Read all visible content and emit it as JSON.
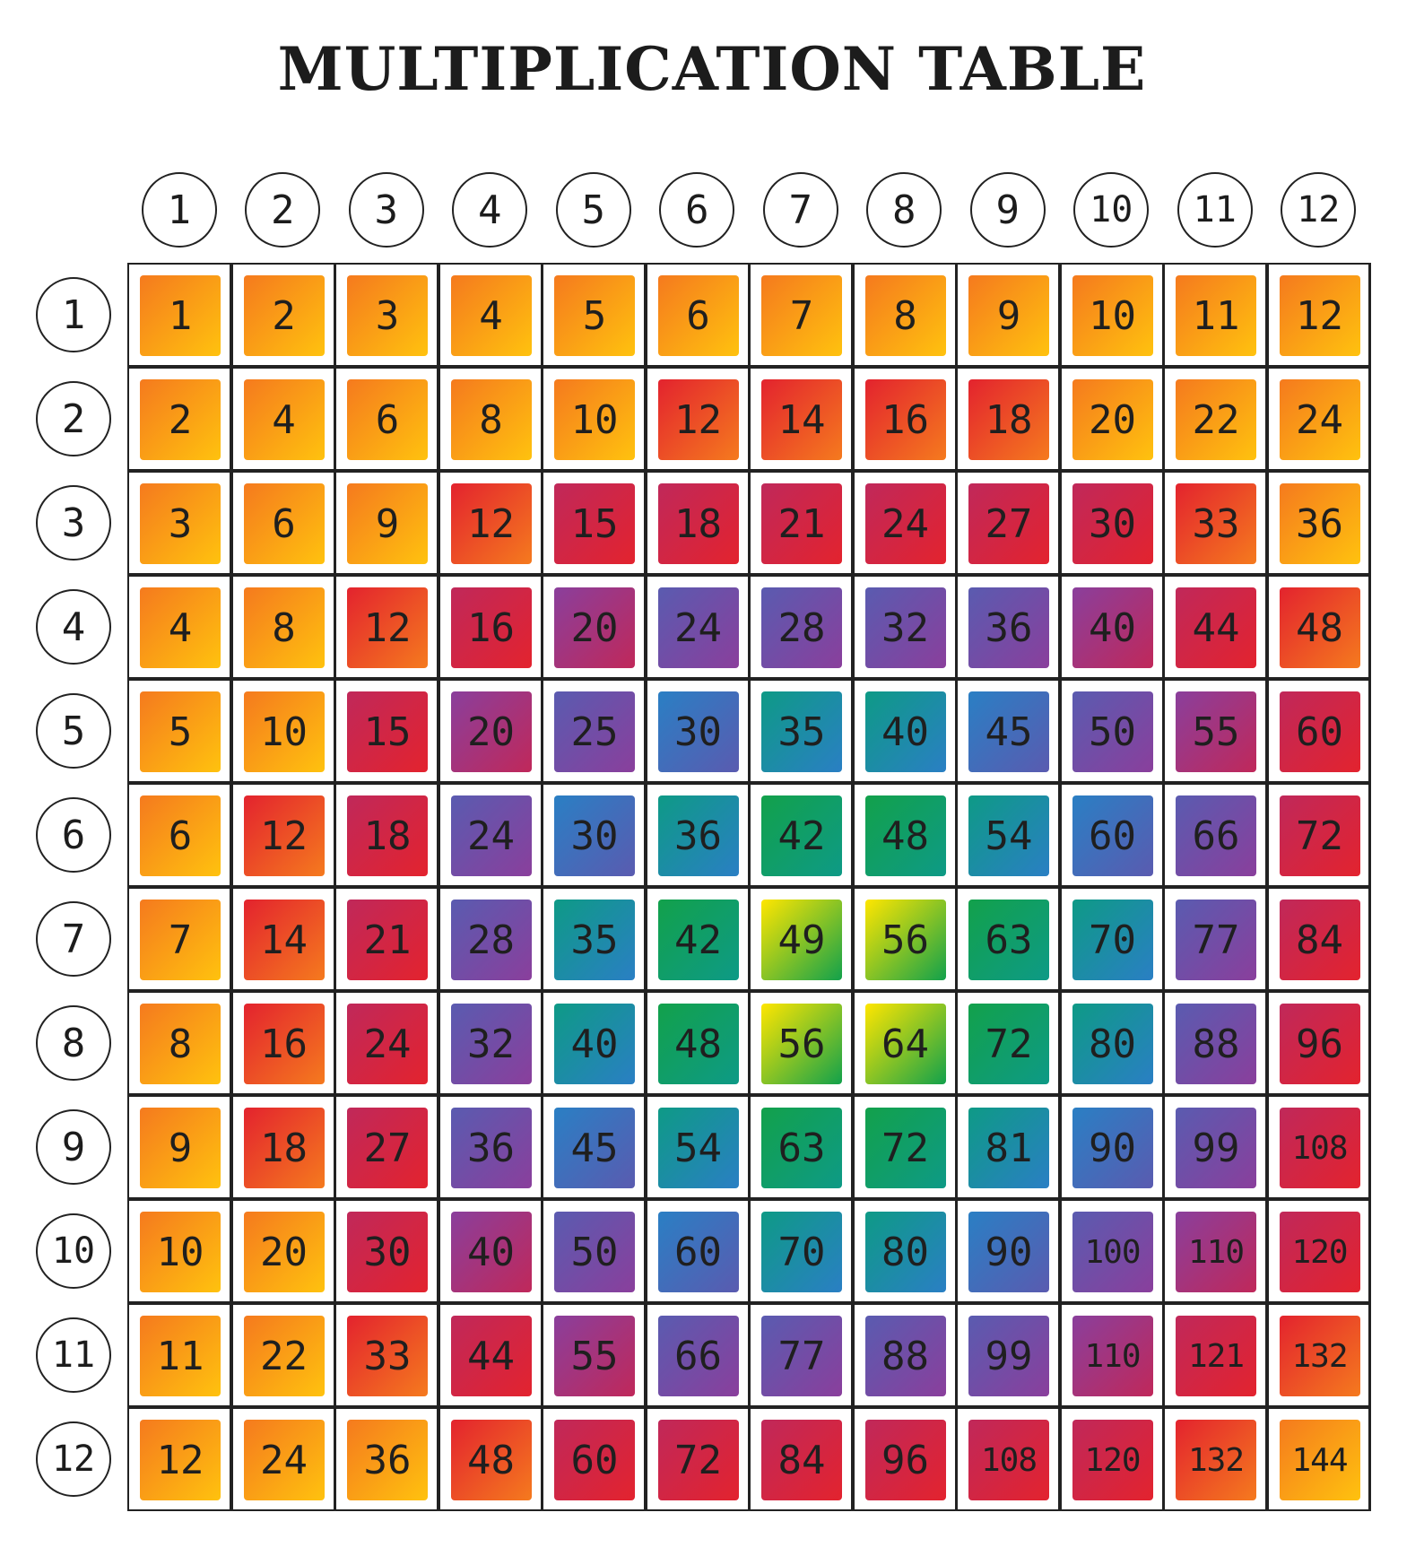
{
  "title": "MULTIPLICATION TABLE",
  "column_headers": [
    "1",
    "2",
    "3",
    "4",
    "5",
    "6",
    "7",
    "8",
    "9",
    "10",
    "11",
    "12"
  ],
  "row_headers": [
    "1",
    "2",
    "3",
    "4",
    "5",
    "6",
    "7",
    "8",
    "9",
    "10",
    "11",
    "12"
  ],
  "rows": [
    [
      "1",
      "2",
      "3",
      "4",
      "5",
      "6",
      "7",
      "8",
      "9",
      "10",
      "11",
      "12"
    ],
    [
      "2",
      "4",
      "6",
      "8",
      "10",
      "12",
      "14",
      "16",
      "18",
      "20",
      "22",
      "24"
    ],
    [
      "3",
      "6",
      "9",
      "12",
      "15",
      "18",
      "21",
      "24",
      "27",
      "30",
      "33",
      "36"
    ],
    [
      "4",
      "8",
      "12",
      "16",
      "20",
      "24",
      "28",
      "32",
      "36",
      "40",
      "44",
      "48"
    ],
    [
      "5",
      "10",
      "15",
      "20",
      "25",
      "30",
      "35",
      "40",
      "45",
      "50",
      "55",
      "60"
    ],
    [
      "6",
      "12",
      "18",
      "24",
      "30",
      "36",
      "42",
      "48",
      "54",
      "60",
      "66",
      "72"
    ],
    [
      "7",
      "14",
      "21",
      "28",
      "35",
      "42",
      "49",
      "56",
      "63",
      "70",
      "77",
      "84"
    ],
    [
      "8",
      "16",
      "24",
      "32",
      "40",
      "48",
      "56",
      "64",
      "72",
      "80",
      "88",
      "96"
    ],
    [
      "9",
      "18",
      "27",
      "36",
      "45",
      "54",
      "63",
      "72",
      "81",
      "90",
      "99",
      "108"
    ],
    [
      "10",
      "20",
      "30",
      "40",
      "50",
      "60",
      "70",
      "80",
      "90",
      "100",
      "110",
      "120"
    ],
    [
      "11",
      "22",
      "33",
      "44",
      "55",
      "66",
      "77",
      "88",
      "99",
      "110",
      "121",
      "132"
    ],
    [
      "12",
      "24",
      "36",
      "48",
      "60",
      "72",
      "84",
      "96",
      "108",
      "120",
      "132",
      "144"
    ]
  ],
  "colors": {
    "center_white": "#fffde8",
    "yellow": "#ffe600",
    "green": "#12a14b",
    "teal": "#0e9a86",
    "blue": "#2a7fc4",
    "violet": "#5a5bb0",
    "purple": "#8a3f9c",
    "magenta": "#c0285a",
    "red": "#e3232e",
    "orange": "#f57a1e",
    "gold": "#ffc20e"
  }
}
